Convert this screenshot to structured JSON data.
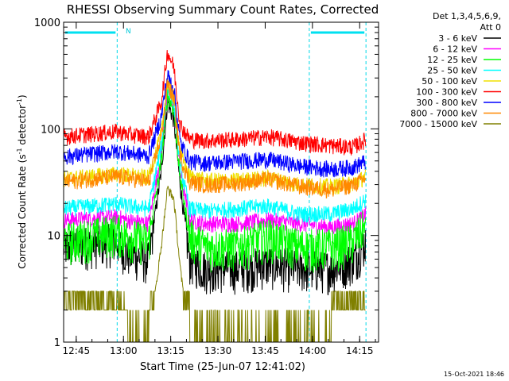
{
  "chart_data": {
    "type": "line",
    "title": "RHESSI Observing Summary Count Rates, Corrected",
    "xlabel": "Start Time (25-Jun-07 12:41:02)",
    "ylabel_main": "Corrected Count Rate (s",
    "ylabel_sup1": "-1",
    "ylabel_mid": " detector",
    "ylabel_sup2": "-1",
    "ylabel_end": ")",
    "yscale": "log",
    "ylim": [
      1,
      1000
    ],
    "xlim_minutes": [
      0,
      100
    ],
    "x_ticks": [
      {
        "label": "12:45",
        "minutes": 4
      },
      {
        "label": "13:00",
        "minutes": 19
      },
      {
        "label": "13:15",
        "minutes": 34
      },
      {
        "label": "13:30",
        "minutes": 49
      },
      {
        "label": "13:45",
        "minutes": 64
      },
      {
        "label": "14:00",
        "minutes": 79
      },
      {
        "label": "14:15",
        "minutes": 94
      }
    ],
    "y_ticks": [
      {
        "label": "1",
        "value": 1
      },
      {
        "label": "10",
        "value": 10
      },
      {
        "label": "100",
        "value": 100
      },
      {
        "label": "1000",
        "value": 1000
      }
    ],
    "legend_header": [
      "Det 1,3,4,5,6,9,",
      "Att 0"
    ],
    "legend_placement": "right",
    "attenuator_flag": "N",
    "night_intervals_minutes": [
      [
        0,
        17
      ],
      [
        78,
        96
      ]
    ],
    "night_markers_minutes": [
      17,
      78,
      96
    ],
    "timestamp": "15-Oct-2021 18:46",
    "series": [
      {
        "name": "3 - 6 keV",
        "color": "#000000",
        "x": [
          0,
          17,
          20,
          27,
          31,
          33,
          35,
          37,
          40,
          45,
          55,
          65,
          75,
          85,
          92,
          96
        ],
        "y": [
          8,
          9,
          7,
          6,
          40,
          180,
          120,
          30,
          6,
          5,
          5,
          5.5,
          5,
          5,
          6,
          9
        ]
      },
      {
        "name": "6 - 12 keV",
        "color": "#ff00ff",
        "x": [
          0,
          17,
          20,
          27,
          31,
          33,
          35,
          37,
          40,
          45,
          55,
          65,
          75,
          85,
          92,
          96
        ],
        "y": [
          14,
          15,
          14,
          13,
          60,
          230,
          160,
          40,
          14,
          13,
          13,
          14,
          13,
          12,
          13,
          16
        ]
      },
      {
        "name": "12 - 25 keV",
        "color": "#00ff00",
        "x": [
          0,
          17,
          20,
          27,
          31,
          33,
          35,
          37,
          40,
          45,
          55,
          65,
          75,
          85,
          92,
          96
        ],
        "y": [
          9,
          11,
          10,
          9,
          50,
          210,
          150,
          35,
          10,
          8,
          8,
          10,
          8,
          8,
          9,
          13
        ]
      },
      {
        "name": "25 - 50 keV",
        "color": "#00ffff",
        "x": [
          0,
          17,
          20,
          27,
          31,
          33,
          35,
          37,
          40,
          45,
          55,
          65,
          75,
          85,
          92,
          96
        ],
        "y": [
          18,
          20,
          19,
          18,
          70,
          260,
          180,
          45,
          18,
          17,
          18,
          19,
          16,
          16,
          18,
          22
        ]
      },
      {
        "name": "50 - 100 keV",
        "color": "#f0e000",
        "x": [
          0,
          17,
          20,
          27,
          31,
          33,
          35,
          37,
          40,
          45,
          55,
          65,
          75,
          85,
          92,
          96
        ],
        "y": [
          34,
          38,
          37,
          35,
          90,
          280,
          200,
          60,
          36,
          33,
          33,
          35,
          30,
          29,
          31,
          36
        ]
      },
      {
        "name": "100 - 300 keV",
        "color": "#ff0000",
        "x": [
          0,
          17,
          20,
          27,
          31,
          33,
          35,
          37,
          40,
          45,
          55,
          65,
          75,
          85,
          92,
          96
        ],
        "y": [
          85,
          95,
          90,
          85,
          180,
          530,
          380,
          110,
          80,
          78,
          80,
          85,
          75,
          70,
          68,
          80
        ]
      },
      {
        "name": "300 - 800 keV",
        "color": "#0000ff",
        "x": [
          0,
          17,
          20,
          27,
          31,
          33,
          35,
          37,
          40,
          45,
          55,
          65,
          75,
          85,
          92,
          96
        ],
        "y": [
          55,
          62,
          60,
          56,
          130,
          320,
          240,
          75,
          50,
          48,
          50,
          52,
          45,
          42,
          44,
          50
        ]
      },
      {
        "name": "800 - 7000 keV",
        "color": "#ff8800",
        "x": [
          0,
          17,
          20,
          27,
          31,
          33,
          35,
          37,
          40,
          45,
          55,
          65,
          75,
          85,
          92,
          96
        ],
        "y": [
          32,
          36,
          35,
          32,
          85,
          270,
          190,
          55,
          32,
          30,
          31,
          34,
          29,
          27,
          30,
          35
        ]
      },
      {
        "name": "7000 - 15000 keV",
        "color": "#808000",
        "x": [
          0,
          17,
          20,
          27,
          31,
          33,
          35,
          37,
          40,
          45,
          55,
          65,
          75,
          85,
          92,
          96
        ],
        "y": [
          2.5,
          2.5,
          1,
          1,
          8,
          28,
          22,
          5,
          1,
          1,
          1,
          1,
          1,
          1,
          2.5,
          2.5
        ]
      }
    ]
  }
}
